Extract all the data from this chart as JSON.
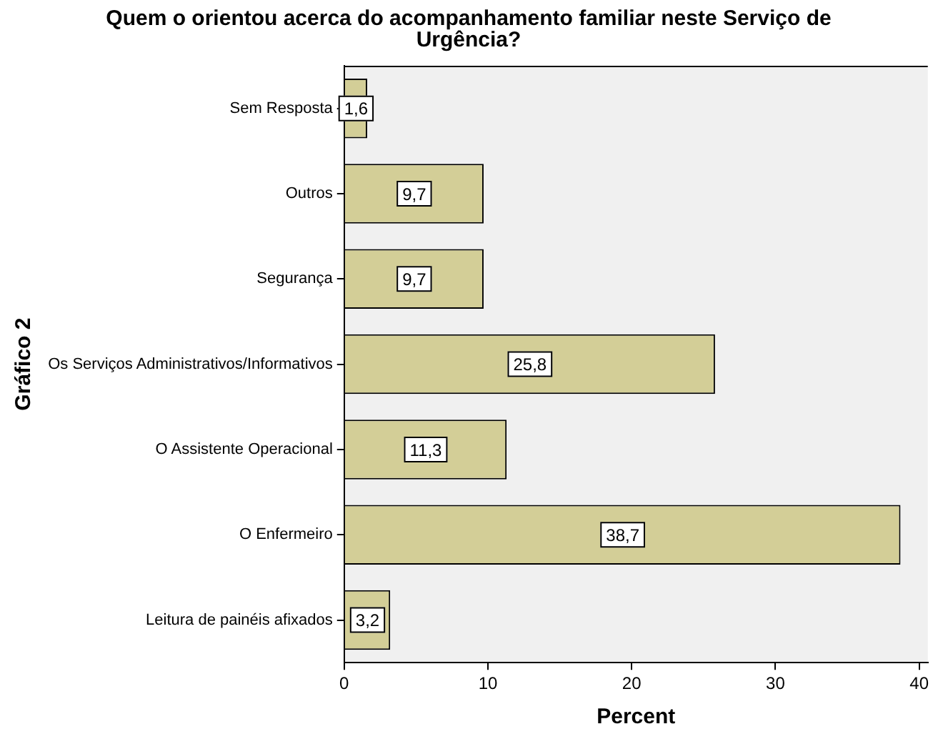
{
  "chart_data": {
    "type": "bar",
    "orientation": "horizontal",
    "title": "Quem o orientou acerca do acompanhamento familiar neste Serviço de Urgência?",
    "xlabel": "Percent",
    "ylabel": "Gráfico 2",
    "categories": [
      "Sem Resposta",
      "Outros",
      "Segurança",
      "Os Serviços Administrativos/Informativos",
      "O Assistente Operacional",
      "O Enfermeiro",
      "Leitura de painéis afixados"
    ],
    "values": [
      1.6,
      9.7,
      9.7,
      25.8,
      11.3,
      38.7,
      3.2
    ],
    "value_labels": [
      "1,6",
      "9,7",
      "9,7",
      "25,8",
      "11,3",
      "38,7",
      "3,2"
    ],
    "color": "#d3ce97",
    "xlim": [
      0,
      40.6
    ],
    "xticks": [
      0,
      10,
      20,
      30,
      40
    ],
    "grid": false,
    "legend": false
  }
}
